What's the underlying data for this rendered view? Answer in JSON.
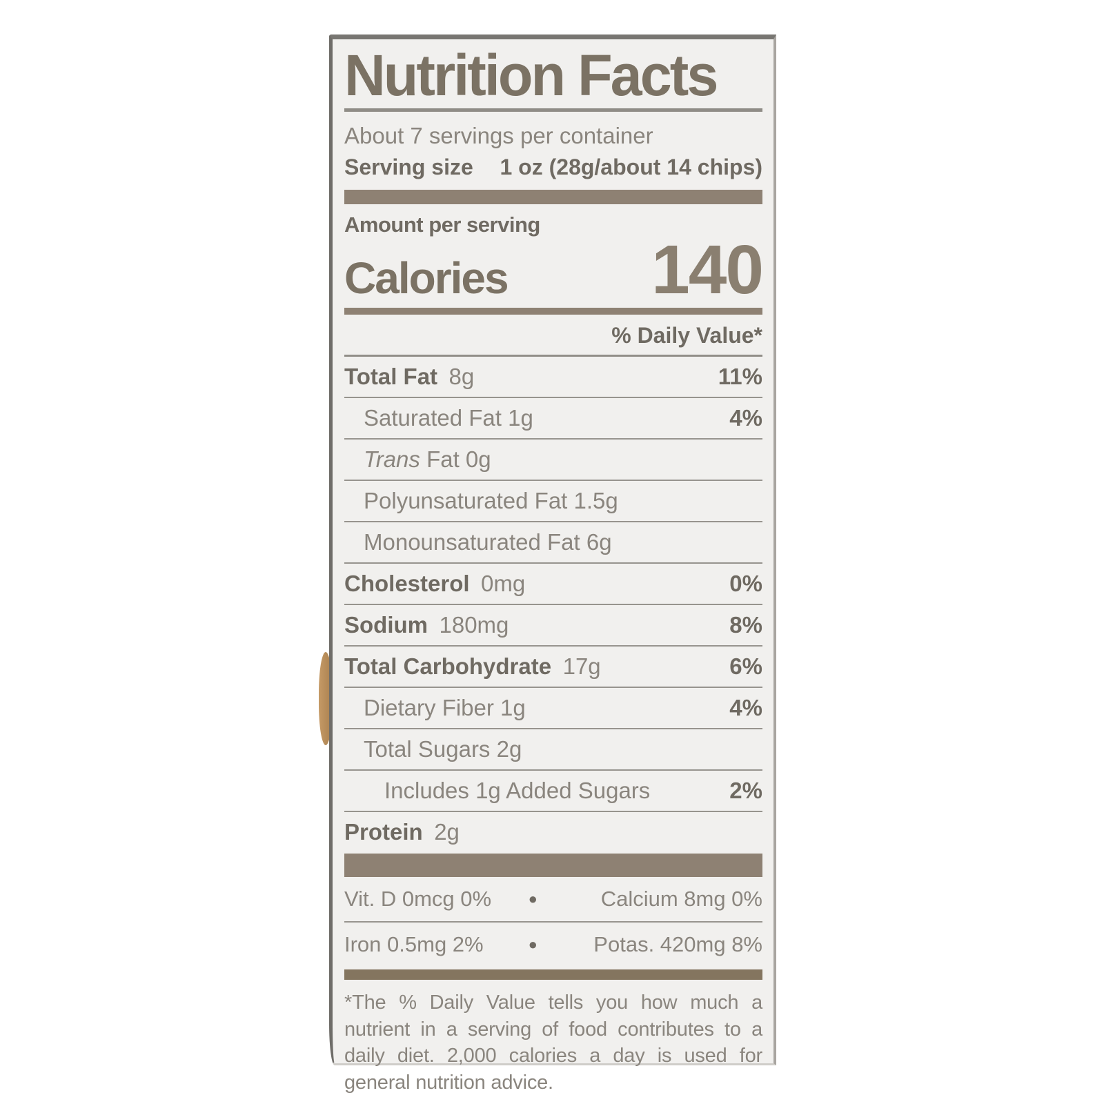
{
  "label": {
    "title": "Nutrition Facts",
    "servings_per_container": "About 7 servings per container",
    "serving_size_label": "Serving size",
    "serving_size_value": "1 oz (28g/about 14 chips)",
    "amount_per_serving": "Amount per serving",
    "calories_label": "Calories",
    "calories_value": "140",
    "daily_value_header": "% Daily Value*",
    "nutrients": [
      {
        "lead": "Total Fat",
        "lead_style": "bold",
        "rest": "8g",
        "dv": "11%",
        "indent": 0
      },
      {
        "lead": "",
        "lead_style": "",
        "rest": "Saturated Fat 1g",
        "dv": "4%",
        "indent": 1
      },
      {
        "lead": "Trans",
        "lead_style": "italic",
        "rest": "Fat 0g",
        "dv": "",
        "indent": 1
      },
      {
        "lead": "",
        "lead_style": "",
        "rest": "Polyunsaturated Fat 1.5g",
        "dv": "",
        "indent": 1
      },
      {
        "lead": "",
        "lead_style": "",
        "rest": "Monounsaturated Fat 6g",
        "dv": "",
        "indent": 1
      },
      {
        "lead": "Cholesterol",
        "lead_style": "bold",
        "rest": "0mg",
        "dv": "0%",
        "indent": 0
      },
      {
        "lead": "Sodium",
        "lead_style": "bold",
        "rest": "180mg",
        "dv": "8%",
        "indent": 0
      },
      {
        "lead": "Total Carbohydrate",
        "lead_style": "bold",
        "rest": "17g",
        "dv": "6%",
        "indent": 0
      },
      {
        "lead": "",
        "lead_style": "",
        "rest": "Dietary Fiber 1g",
        "dv": "4%",
        "indent": 1
      },
      {
        "lead": "",
        "lead_style": "",
        "rest": "Total Sugars 2g",
        "dv": "",
        "indent": 1
      },
      {
        "lead": "",
        "lead_style": "",
        "rest": "Includes 1g Added Sugars",
        "dv": "2%",
        "indent": 2
      },
      {
        "lead": "Protein",
        "lead_style": "bold",
        "rest": "2g",
        "dv": "",
        "indent": 0
      }
    ],
    "micronutrients": {
      "bullet": "●",
      "rows": [
        {
          "left": "Vit. D 0mcg 0%",
          "right": "Calcium 8mg 0%"
        },
        {
          "left": "Iron 0.5mg 2%",
          "right": "Potas. 420mg 8%"
        }
      ]
    },
    "footnote": "*The % Daily Value tells you how much a nutrient in a serving of food contributes to a daily diet. 2,000 calories a day is used for general nutrition advice.",
    "colors": {
      "label_background": "#f1f0ee",
      "text_regular": "#8a857e",
      "text_bold": "#6f6a62",
      "heading": "#7b7264",
      "bar": "#8e8173",
      "bar_dark": "#84755f",
      "separator": "#97948e"
    }
  }
}
